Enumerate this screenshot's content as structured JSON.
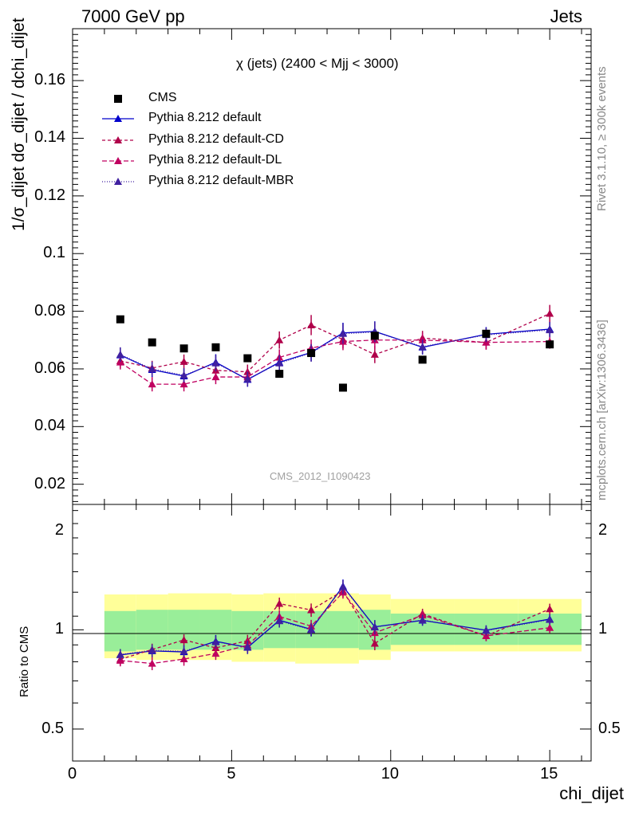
{
  "header": {
    "left": "7000 GeV pp",
    "right": "Jets"
  },
  "side": {
    "rivet": "Rivet 3.1.10, ≥ 300k events",
    "mcplots": "mcplots.cern.ch [arXiv:1306.3436]"
  },
  "watermark": "CMS_2012_I1090423",
  "chart_data": {
    "type": "scatter",
    "title": "χ (jets) (2400 < Mjj < 3000)",
    "ylabel_main": "1/σ_dijet dσ_dijet / dchi_dijet",
    "ylabel_ratio": "Ratio to CMS",
    "xlabel": "chi_dijet",
    "xlim": [
      0,
      16.3
    ],
    "ylim_main": [
      0.013,
      0.178
    ],
    "ylim_ratio": [
      0.4,
      2.4
    ],
    "x_ticks": [
      "0",
      "5",
      "10",
      "15"
    ],
    "y_ticks_main": [
      "0.02",
      "0.04",
      "0.06",
      "0.08",
      "0.1",
      "0.12",
      "0.14",
      "0.16"
    ],
    "y_ticks_ratio": [
      "0.5",
      "1",
      "2"
    ],
    "x": [
      1.5,
      2.5,
      3.5,
      4.5,
      5.5,
      6.5,
      7.5,
      8.5,
      9.5,
      11.0,
      13.0,
      15.0
    ],
    "bin_edges": [
      1,
      2,
      3,
      4,
      5,
      6,
      7,
      8,
      9,
      10,
      12,
      14,
      16
    ],
    "data": {
      "name": "CMS",
      "values": [
        0.0772,
        0.0692,
        0.0671,
        0.0675,
        0.0637,
        0.0583,
        0.0655,
        0.0535,
        0.0715,
        0.0632,
        0.0722,
        0.0685
      ]
    },
    "band_inner": [
      0.86,
      0.87,
      0.87,
      0.87,
      0.87,
      0.88,
      0.88,
      0.88,
      0.87,
      0.9,
      0.9,
      0.9
    ],
    "band_inner_hi": [
      1.14,
      1.15,
      1.15,
      1.15,
      1.14,
      1.14,
      1.14,
      1.14,
      1.15,
      1.12,
      1.12,
      1.12
    ],
    "band_outer": [
      0.82,
      0.81,
      0.81,
      0.81,
      0.8,
      0.8,
      0.79,
      0.79,
      0.81,
      0.86,
      0.86,
      0.86
    ],
    "band_outer_hi": [
      1.28,
      1.28,
      1.29,
      1.29,
      1.28,
      1.29,
      1.29,
      1.29,
      1.28,
      1.24,
      1.24,
      1.24
    ],
    "series": [
      {
        "name": "Pythia 8.212 default",
        "color": "#0000cc",
        "dash": "",
        "values": [
          0.0648,
          0.0597,
          0.0575,
          0.0623,
          0.0563,
          0.0623,
          0.0657,
          0.0725,
          0.073,
          0.0675,
          0.072,
          0.0738
        ],
        "errors": [
          0.0025,
          0.0025,
          0.0025,
          0.0028,
          0.0025,
          0.0028,
          0.003,
          0.0035,
          0.0035,
          0.0025,
          0.0025,
          0.0025
        ]
      },
      {
        "name": "Pythia 8.212 default-CD",
        "color": "#b0004a",
        "dash": "4,3",
        "values": [
          0.0628,
          0.0603,
          0.0625,
          0.0595,
          0.059,
          0.07,
          0.0752,
          0.0702,
          0.065,
          0.0707,
          0.0692,
          0.0792
        ],
        "errors": [
          0.0025,
          0.0025,
          0.0025,
          0.0025,
          0.0025,
          0.003,
          0.0035,
          0.003,
          0.003,
          0.0025,
          0.0025,
          0.003
        ]
      },
      {
        "name": "Pythia 8.212 default-DL",
        "color": "#c00060",
        "dash": "6,3",
        "values": [
          0.0623,
          0.0547,
          0.0547,
          0.0572,
          0.0572,
          0.064,
          0.0672,
          0.0695,
          0.07,
          0.07,
          0.0692,
          0.0695
        ],
        "errors": [
          0.0025,
          0.0025,
          0.0025,
          0.0025,
          0.0025,
          0.0028,
          0.003,
          0.003,
          0.003,
          0.0025,
          0.0025,
          0.0025
        ]
      },
      {
        "name": "Pythia 8.212 default-MBR",
        "color": "#4020a0",
        "dash": "1,2",
        "values": [
          0.065,
          0.06,
          0.0578,
          0.062,
          0.0565,
          0.062,
          0.0655,
          0.0722,
          0.0728,
          0.0677,
          0.0718,
          0.0735
        ],
        "errors": [
          0.0025,
          0.0025,
          0.0025,
          0.0028,
          0.0025,
          0.0028,
          0.003,
          0.0035,
          0.0035,
          0.0025,
          0.0025,
          0.0025
        ]
      }
    ]
  }
}
